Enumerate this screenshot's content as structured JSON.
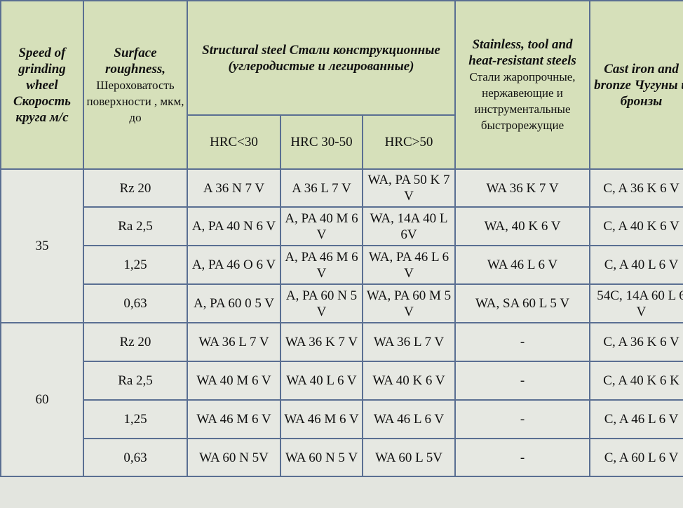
{
  "header": {
    "speed": "Speed of grinding wheel Скорость круга м/с",
    "roughness_en": "Surface roughness,",
    "roughness_ru": "Шероховатость поверхности , мкм, до",
    "structural": "Structural steel Стали конструкционные (углеродистые и легированные)",
    "hrc_low": "HRC<30",
    "hrc_mid": "HRC 30-50",
    "hrc_high": "HRC>50",
    "stainless_en": "Stainless, tool and heat-resistant steels",
    "stainless_ru": "Стали жаропрочные, нержавеющие и инструментальные быстрорежущие",
    "cast_iron": "Cast iron and bronze Чугуны и бронзы"
  },
  "groups": [
    {
      "speed": "35",
      "rows": [
        {
          "roughness": "Rz 20",
          "hrc_low": "A 36 N 7 V",
          "hrc_mid": "A 36 L 7 V",
          "hrc_high": "WA, PA 50 K 7 V",
          "stainless": "WA 36 K 7 V",
          "cast_iron": "C, A 36 K 6 V"
        },
        {
          "roughness": "Ra 2,5",
          "hrc_low": "A, PA 40 N 6 V",
          "hrc_mid": "A, PA 40 M 6 V",
          "hrc_high": "WA, 14A 40 L 6V",
          "stainless": "WA, 40 K 6 V",
          "cast_iron": "C, A 40 K 6 V"
        },
        {
          "roughness": "1,25",
          "hrc_low": "A, PA 46 O 6 V",
          "hrc_mid": "A, PA 46 M 6 V",
          "hrc_high": "WA, PA 46 L 6 V",
          "stainless": "WA 46 L 6 V",
          "cast_iron": "C, A 40 L 6 V"
        },
        {
          "roughness": "0,63",
          "hrc_low": "A, PA 60 0 5 V",
          "hrc_mid": "A, PA 60 N 5 V",
          "hrc_high": "WA, PA 60 M 5 V",
          "stainless": "WA, SA 60 L 5 V",
          "cast_iron": "54C, 14A 60 L  6 V"
        }
      ]
    },
    {
      "speed": "60",
      "rows": [
        {
          "roughness": "Rz 20",
          "hrc_low": "WA 36 L 7 V",
          "hrc_mid": "WA 36 K 7 V",
          "hrc_high": "WA 36 L 7 V",
          "stainless": "-",
          "cast_iron": "C, A 36 K 6 V"
        },
        {
          "roughness": "Ra 2,5",
          "hrc_low": "WA 40 M 6 V",
          "hrc_mid": "WA 40 L 6 V",
          "hrc_high": "WA 40 K 6 V",
          "stainless": "-",
          "cast_iron": "C, A 40 K 6 K"
        },
        {
          "roughness": "1,25",
          "hrc_low": "WA 46 M 6 V",
          "hrc_mid": "WA 46 M 6 V",
          "hrc_high": "WA 46 L 6 V",
          "stainless": "-",
          "cast_iron": "C, A 46 L 6 V"
        },
        {
          "roughness": "0,63",
          "hrc_low": "WA 60 N 5V",
          "hrc_mid": "WA 60 N 5 V",
          "hrc_high": "WA 60 L 5V",
          "stainless": "-",
          "cast_iron": "C, A 60 L 6 V"
        }
      ]
    }
  ]
}
